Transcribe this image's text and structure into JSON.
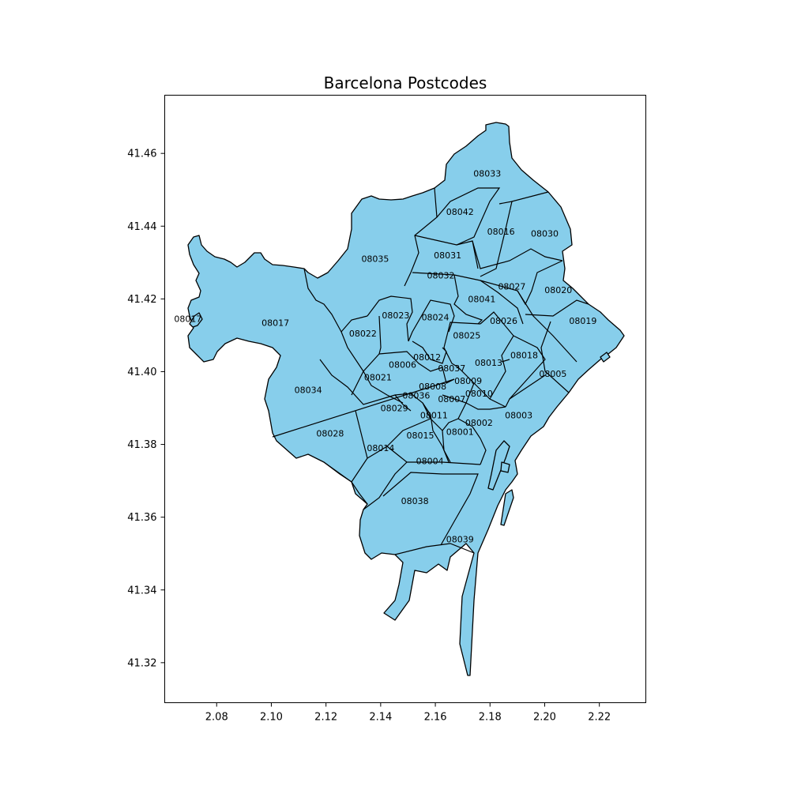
{
  "chart_data": {
    "type": "choropleth-map",
    "title": "Barcelona Postcodes",
    "fill_color": "#87ceeb",
    "edge_color": "#000000",
    "xlim": [
      2.061,
      2.237
    ],
    "ylim": [
      41.309,
      41.476
    ],
    "x_ticks": [
      "2.08",
      "2.10",
      "2.12",
      "2.14",
      "2.16",
      "2.18",
      "2.20",
      "2.22"
    ],
    "y_ticks": [
      "41.32",
      "41.34",
      "41.36",
      "41.38",
      "41.40",
      "41.42",
      "41.44",
      "41.46"
    ],
    "postcodes": [
      {
        "code": "08017",
        "lon": 2.0695,
        "lat": 41.4145
      },
      {
        "code": "08017",
        "lon": 2.1015,
        "lat": 41.4135
      },
      {
        "code": "08035",
        "lon": 2.138,
        "lat": 41.431
      },
      {
        "code": "08033",
        "lon": 2.179,
        "lat": 41.4545
      },
      {
        "code": "08042",
        "lon": 2.169,
        "lat": 41.444
      },
      {
        "code": "08016",
        "lon": 2.184,
        "lat": 41.4385
      },
      {
        "code": "08030",
        "lon": 2.2,
        "lat": 41.438
      },
      {
        "code": "08031",
        "lon": 2.1645,
        "lat": 41.432
      },
      {
        "code": "08032",
        "lon": 2.162,
        "lat": 41.4265
      },
      {
        "code": "08027",
        "lon": 2.188,
        "lat": 41.4235
      },
      {
        "code": "08020",
        "lon": 2.205,
        "lat": 41.4225
      },
      {
        "code": "08041",
        "lon": 2.177,
        "lat": 41.42
      },
      {
        "code": "08023",
        "lon": 2.1455,
        "lat": 41.4155
      },
      {
        "code": "08024",
        "lon": 2.16,
        "lat": 41.415
      },
      {
        "code": "08026",
        "lon": 2.185,
        "lat": 41.414
      },
      {
        "code": "08019",
        "lon": 2.214,
        "lat": 41.414
      },
      {
        "code": "08022",
        "lon": 2.1335,
        "lat": 41.4105
      },
      {
        "code": "08025",
        "lon": 2.1715,
        "lat": 41.41
      },
      {
        "code": "08012",
        "lon": 2.157,
        "lat": 41.404
      },
      {
        "code": "08018",
        "lon": 2.1925,
        "lat": 41.4045
      },
      {
        "code": "08006",
        "lon": 2.148,
        "lat": 41.402
      },
      {
        "code": "08037",
        "lon": 2.166,
        "lat": 41.401
      },
      {
        "code": "08013",
        "lon": 2.1795,
        "lat": 41.4025
      },
      {
        "code": "08005",
        "lon": 2.203,
        "lat": 41.3995
      },
      {
        "code": "08021",
        "lon": 2.139,
        "lat": 41.3985
      },
      {
        "code": "08009",
        "lon": 2.172,
        "lat": 41.3975
      },
      {
        "code": "08008",
        "lon": 2.159,
        "lat": 41.396
      },
      {
        "code": "08034",
        "lon": 2.1135,
        "lat": 41.395
      },
      {
        "code": "08010",
        "lon": 2.176,
        "lat": 41.394
      },
      {
        "code": "08036",
        "lon": 2.153,
        "lat": 41.3935
      },
      {
        "code": "08007",
        "lon": 2.166,
        "lat": 41.3925
      },
      {
        "code": "08029",
        "lon": 2.145,
        "lat": 41.39
      },
      {
        "code": "08011",
        "lon": 2.1595,
        "lat": 41.388
      },
      {
        "code": "08003",
        "lon": 2.1905,
        "lat": 41.388
      },
      {
        "code": "08002",
        "lon": 2.176,
        "lat": 41.386
      },
      {
        "code": "08028",
        "lon": 2.1215,
        "lat": 41.383
      },
      {
        "code": "08001",
        "lon": 2.169,
        "lat": 41.3835
      },
      {
        "code": "08015",
        "lon": 2.1545,
        "lat": 41.3825
      },
      {
        "code": "08014",
        "lon": 2.14,
        "lat": 41.379
      },
      {
        "code": "08004",
        "lon": 2.158,
        "lat": 41.3755
      },
      {
        "code": "08038",
        "lon": 2.1525,
        "lat": 41.3645
      },
      {
        "code": "08039",
        "lon": 2.169,
        "lat": 41.354
      }
    ]
  }
}
